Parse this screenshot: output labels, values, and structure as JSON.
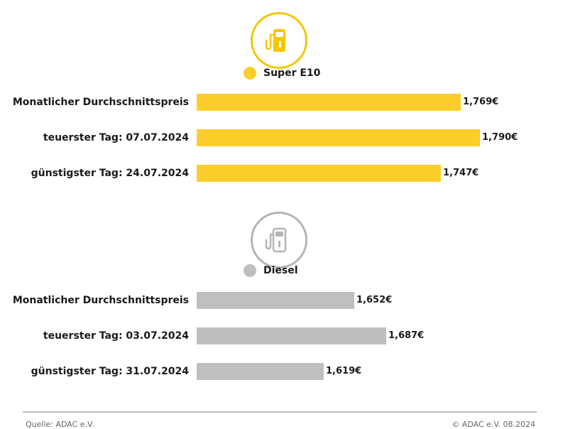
{
  "chart_data": [
    {
      "type": "bar",
      "orientation": "horizontal",
      "legend": "Super E10",
      "color": "#fcce2c",
      "categories": [
        "Monatlicher Durchschnittspreis",
        "teuerster Tag: 07.07.2024",
        "günstigster Tag: 24.07.2024"
      ],
      "values": [
        1.769,
        1.79,
        1.747
      ],
      "value_labels": [
        "1,769€",
        "1,790€",
        "1,747€"
      ]
    },
    {
      "type": "bar",
      "orientation": "horizontal",
      "legend": "Diesel",
      "color": "#bfbfbf",
      "categories": [
        "Monatlicher Durchschnittspreis",
        "teuerster Tag: 03.07.2024",
        "günstigster Tag: 31.07.2024"
      ],
      "values": [
        1.652,
        1.687,
        1.619
      ],
      "value_labels": [
        "1,652€",
        "1,687€",
        "1,619€"
      ]
    }
  ],
  "footer": {
    "source": "Quelle: ADAC e.V.",
    "copyright": "© ADAC e.V. 08.2024"
  },
  "icons": {
    "e10": "fuel-pump-icon",
    "diesel": "fuel-pump-icon"
  },
  "colors": {
    "e10_ring": "#f6c600",
    "diesel_ring": "#b4b4b4"
  }
}
